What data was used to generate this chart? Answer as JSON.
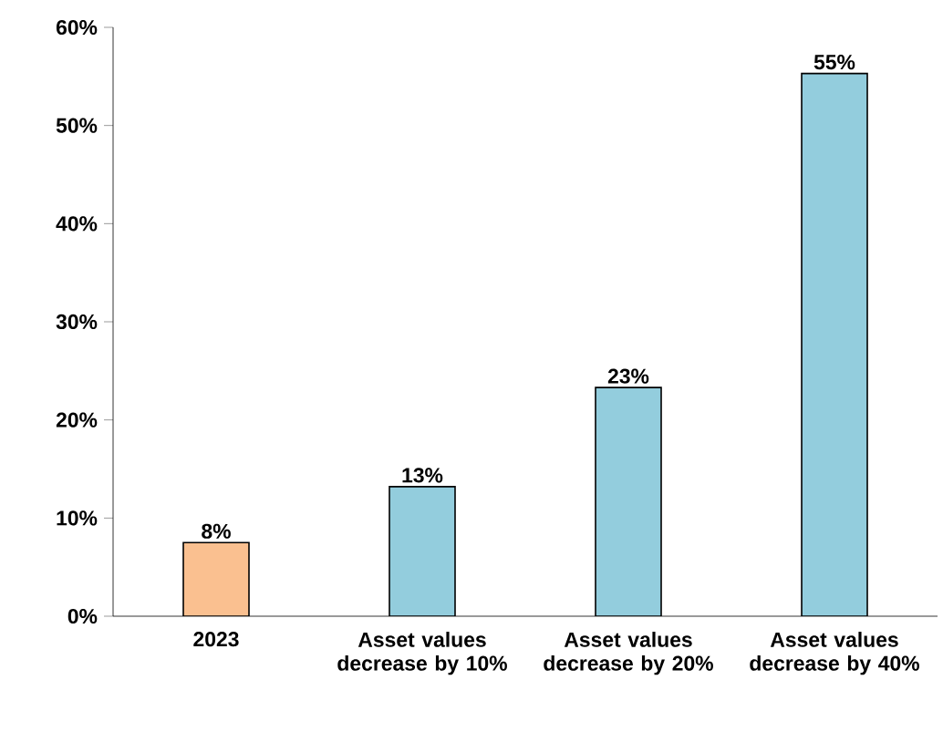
{
  "chart_data": {
    "type": "bar",
    "categories": [
      "2023",
      "Asset values decrease by 10%",
      "Asset values decrease by 20%",
      "Asset values decrease by 40%"
    ],
    "values": [
      7.5,
      13.2,
      23.3,
      55.3
    ],
    "value_labels": [
      "8%",
      "13%",
      "23%",
      "55%"
    ],
    "colors": [
      "#fac090",
      "#93cddd",
      "#93cddd",
      "#93cddd"
    ],
    "ylim": [
      0,
      60
    ],
    "yticks": [
      {
        "value": 0,
        "label": "0%"
      },
      {
        "value": 10,
        "label": "10%"
      },
      {
        "value": 20,
        "label": "20%"
      },
      {
        "value": 30,
        "label": "30%"
      },
      {
        "value": 40,
        "label": "40%"
      },
      {
        "value": 50,
        "label": "50%"
      },
      {
        "value": 60,
        "label": "60%"
      }
    ]
  }
}
